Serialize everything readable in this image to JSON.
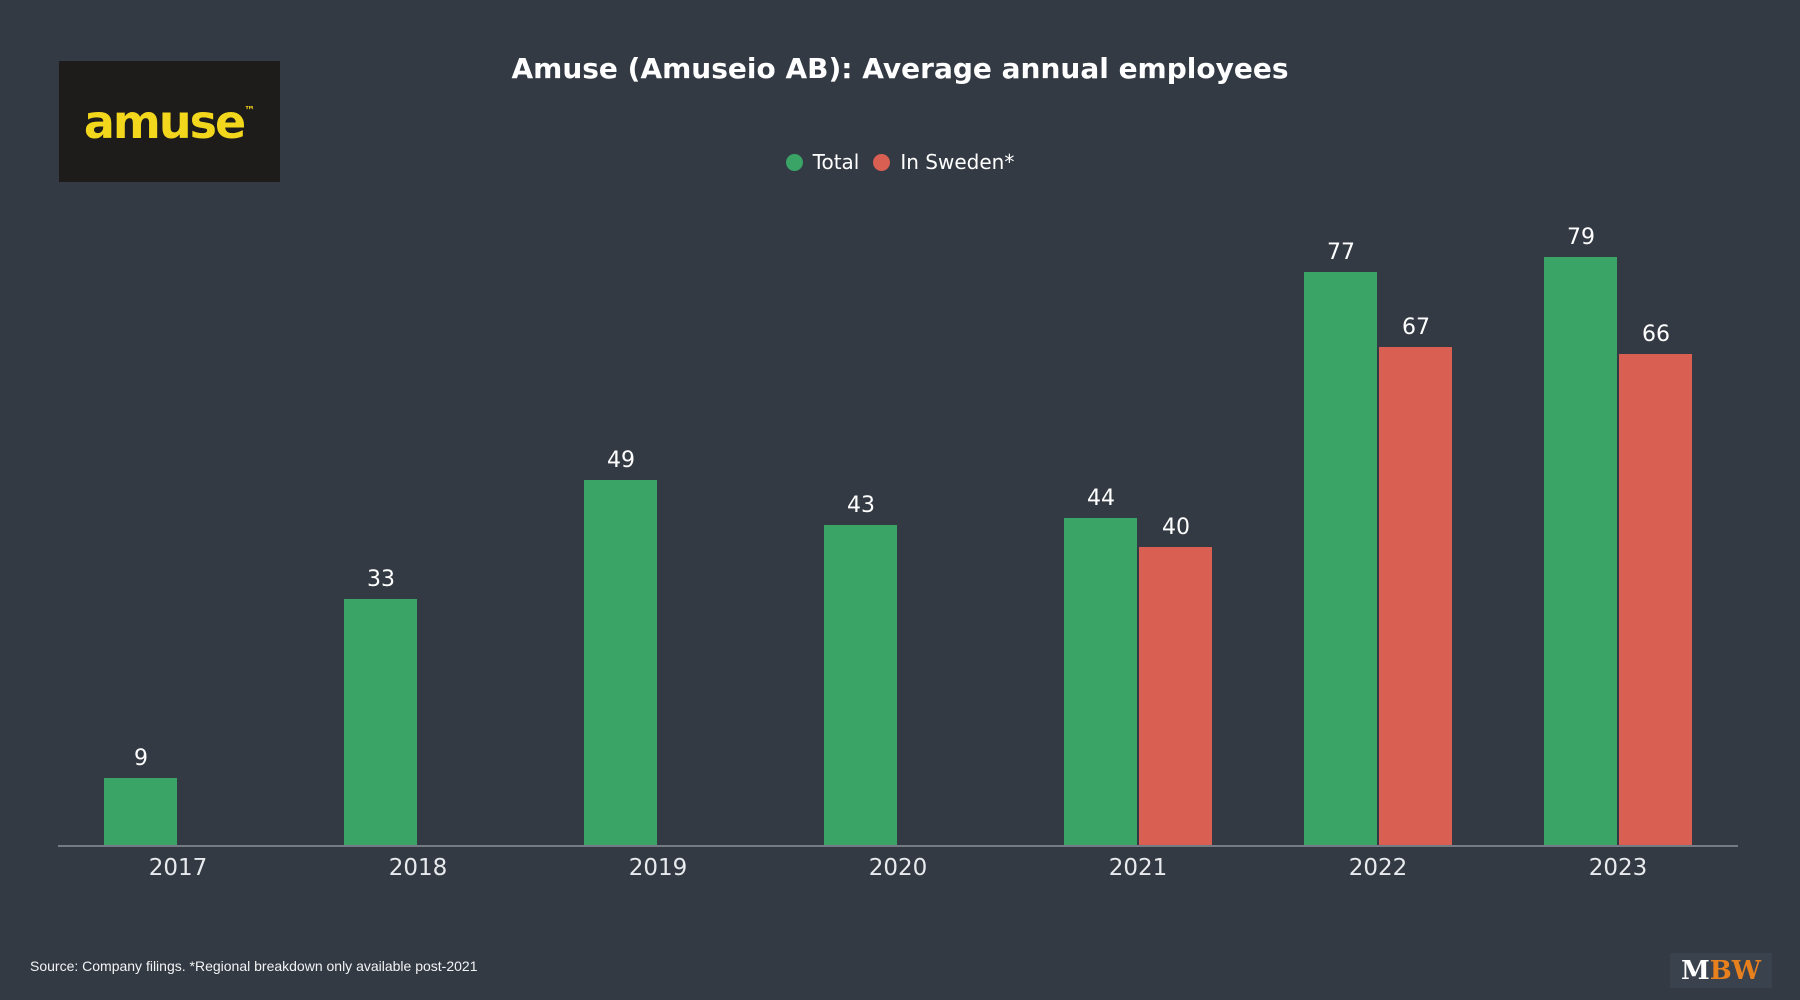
{
  "page": {
    "background": "#333a44"
  },
  "logo": {
    "text": "amuse",
    "tm": "™",
    "text_color": "#f2d71c",
    "box_color": "#1d1c1a"
  },
  "header": {
    "title": "Amuse (Amuseio AB): Average annual employees"
  },
  "chart_data": {
    "type": "bar",
    "title": "Amuse (Amuseio AB): Average annual employees",
    "categories": [
      "2017",
      "2018",
      "2019",
      "2020",
      "2021",
      "2022",
      "2023"
    ],
    "series": [
      {
        "name": "Total",
        "color": "#3aa466",
        "values": [
          9,
          33,
          49,
          43,
          44,
          77,
          79
        ]
      },
      {
        "name": "In Sweden*",
        "color": "#d95f53",
        "values": [
          null,
          null,
          null,
          null,
          40,
          67,
          66
        ]
      }
    ],
    "xlabel": "",
    "ylabel": "",
    "ylim": [
      0,
      88
    ],
    "grid": false,
    "legend_position": "top-center",
    "bar_value_labels": true,
    "value_label_color": "#ffffff",
    "axis_line_color": "#757b85",
    "tick_label_color": "#e8eaed"
  },
  "footer": {
    "source": "Source: Company filings. *Regional breakdown only available post-2021",
    "brand": {
      "part1": "M",
      "part2": "BW",
      "part1_color": "#ffffff",
      "part2_color": "#e8801e"
    }
  }
}
